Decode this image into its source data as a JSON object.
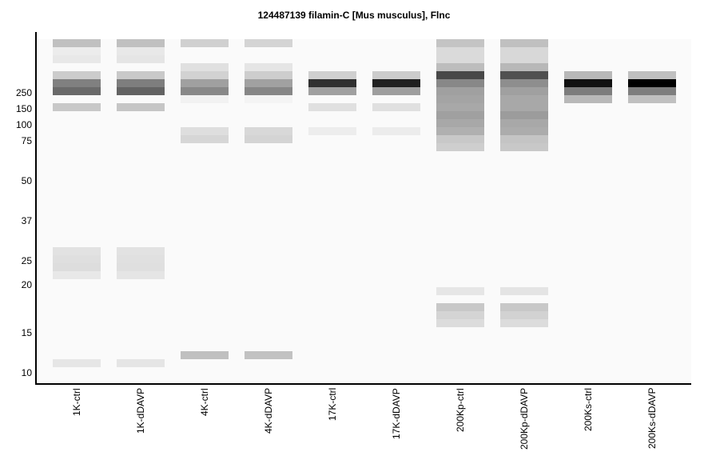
{
  "chart_data": {
    "type": "heatmap",
    "title": "124487139 filamin-C [Mus musculus], Flnc",
    "ylabel": "",
    "xlabel": "",
    "y_tick_labels": [
      "250",
      "150",
      "100",
      "75",
      "50",
      "37",
      "25",
      "20",
      "15",
      "10"
    ],
    "lanes": [
      "1K-ctrl",
      "1K-dDAVP",
      "4K-ctrl",
      "4K-dDAVP",
      "17K-ctrl",
      "17K-dDAVP",
      "200Kp-ctrl",
      "200Kp-dDAVP",
      "200Ks-ctrl",
      "200Ks-dDAVP"
    ],
    "band_note": "bands as [slot index from top, gray level 0-255]",
    "bands": [
      [
        [
          0,
          192
        ],
        [
          1,
          236
        ],
        [
          2,
          232
        ],
        [
          4,
          204
        ],
        [
          5,
          128
        ],
        [
          6,
          106
        ],
        [
          8,
          200
        ],
        [
          26,
          226
        ],
        [
          27,
          223
        ],
        [
          28,
          221
        ],
        [
          29,
          232
        ],
        [
          40,
          230
        ]
      ],
      [
        [
          0,
          192
        ],
        [
          1,
          232
        ],
        [
          2,
          229
        ],
        [
          4,
          201
        ],
        [
          5,
          126
        ],
        [
          6,
          99
        ],
        [
          8,
          198
        ],
        [
          26,
          226
        ],
        [
          27,
          224
        ],
        [
          28,
          223
        ],
        [
          29,
          229
        ],
        [
          40,
          229
        ]
      ],
      [
        [
          0,
          208
        ],
        [
          3,
          224
        ],
        [
          4,
          210
        ],
        [
          5,
          160
        ],
        [
          6,
          136
        ],
        [
          7,
          242
        ],
        [
          11,
          222
        ],
        [
          12,
          214
        ],
        [
          39,
          192
        ]
      ],
      [
        [
          0,
          212
        ],
        [
          3,
          229
        ],
        [
          4,
          205
        ],
        [
          5,
          161
        ],
        [
          6,
          134
        ],
        [
          7,
          244
        ],
        [
          11,
          216
        ],
        [
          12,
          212
        ],
        [
          39,
          194
        ]
      ],
      [
        [
          4,
          208
        ],
        [
          5,
          48
        ],
        [
          6,
          160
        ],
        [
          8,
          224
        ],
        [
          11,
          237
        ]
      ],
      [
        [
          4,
          204
        ],
        [
          5,
          32
        ],
        [
          6,
          158
        ],
        [
          8,
          224
        ],
        [
          11,
          236
        ]
      ],
      [
        [
          0,
          196
        ],
        [
          1,
          218
        ],
        [
          2,
          218
        ],
        [
          3,
          189
        ],
        [
          4,
          72
        ],
        [
          5,
          136
        ],
        [
          6,
          160
        ],
        [
          7,
          164
        ],
        [
          8,
          168
        ],
        [
          9,
          160
        ],
        [
          10,
          168
        ],
        [
          11,
          176
        ],
        [
          12,
          200
        ],
        [
          13,
          206
        ],
        [
          31,
          230
        ],
        [
          33,
          200
        ],
        [
          34,
          212
        ],
        [
          35,
          220
        ]
      ],
      [
        [
          0,
          192
        ],
        [
          1,
          216
        ],
        [
          2,
          216
        ],
        [
          3,
          184
        ],
        [
          4,
          80
        ],
        [
          5,
          142
        ],
        [
          6,
          160
        ],
        [
          7,
          168
        ],
        [
          8,
          168
        ],
        [
          9,
          156
        ],
        [
          10,
          168
        ],
        [
          11,
          172
        ],
        [
          12,
          196
        ],
        [
          13,
          200
        ],
        [
          31,
          228
        ],
        [
          33,
          200
        ],
        [
          34,
          210
        ],
        [
          35,
          220
        ]
      ],
      [
        [
          4,
          184
        ],
        [
          5,
          16
        ],
        [
          6,
          124
        ],
        [
          7,
          184
        ]
      ],
      [
        [
          4,
          192
        ],
        [
          5,
          0
        ],
        [
          6,
          126
        ],
        [
          7,
          192
        ]
      ]
    ]
  }
}
